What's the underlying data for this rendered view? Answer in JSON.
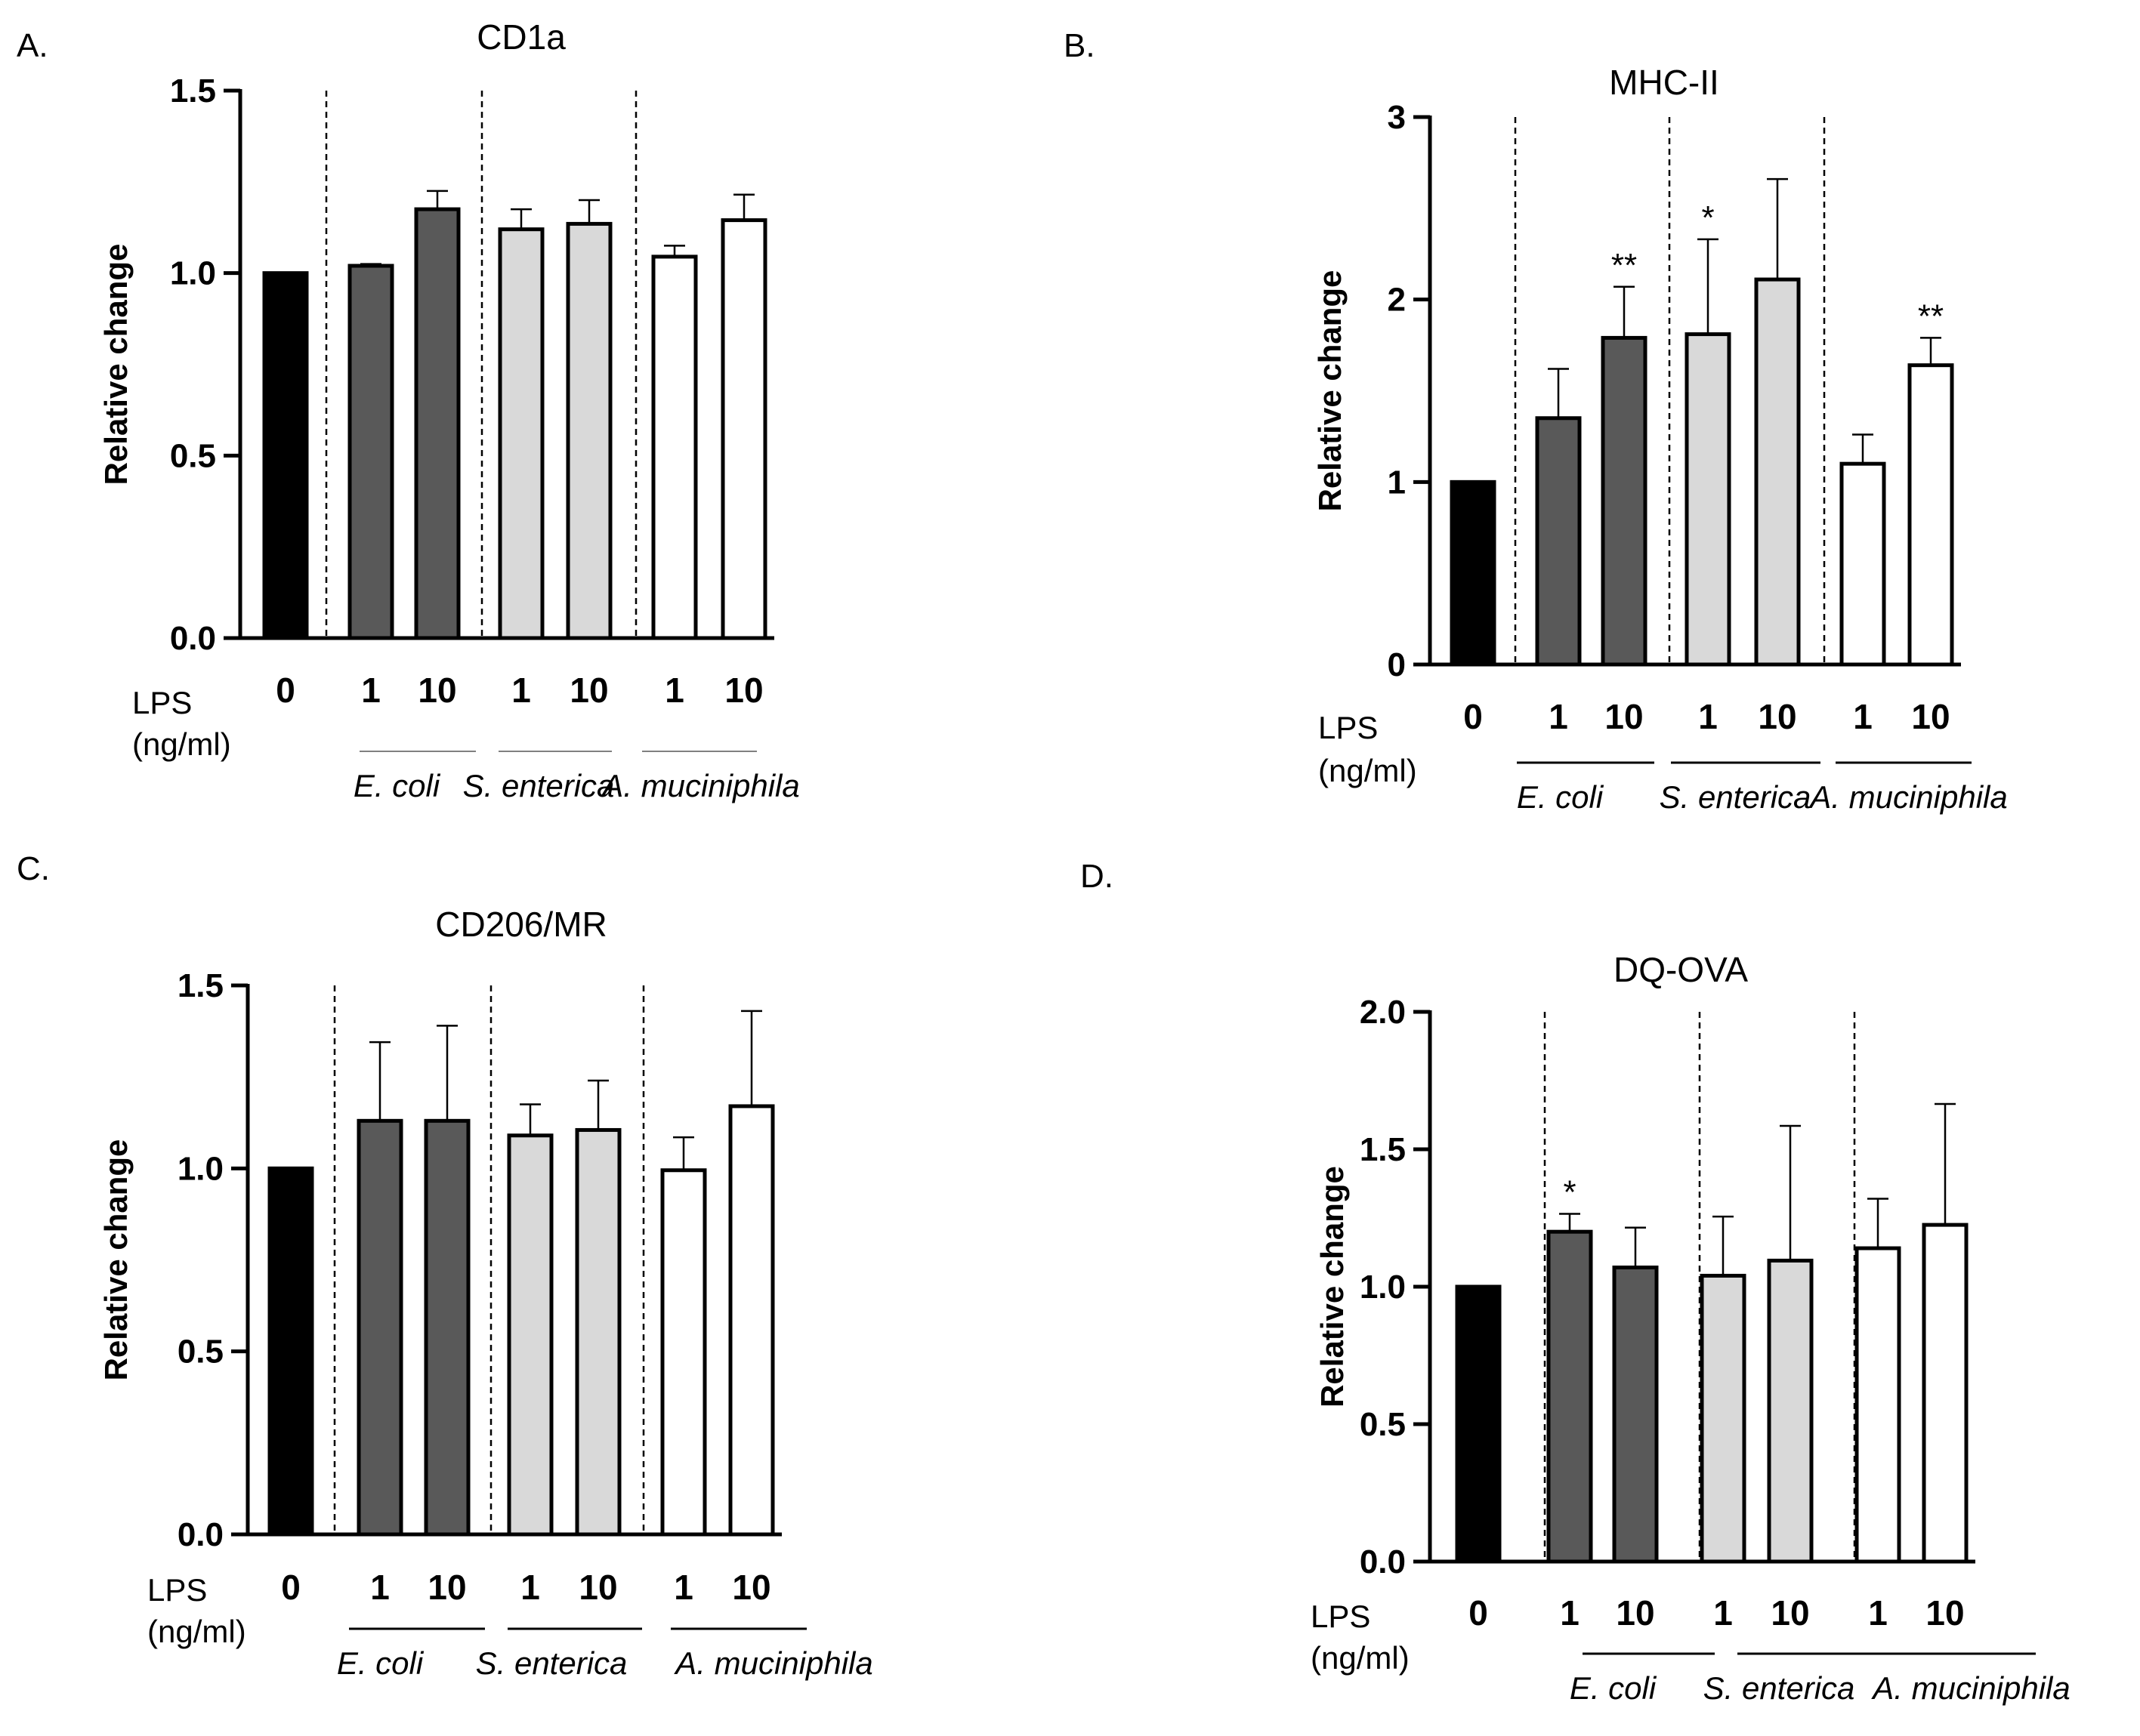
{
  "chart_data": [
    {
      "type": "bar",
      "panel_label": "A.",
      "title": "CD1a",
      "ylabel": "Relative change",
      "ylim": [
        0,
        1.5
      ],
      "yticks": [
        "0.0",
        "0.5",
        "1.0",
        "1.5"
      ],
      "xlabel_prefix": [
        "LPS",
        "(ng/ml)"
      ],
      "categories": [
        "0",
        "1",
        "10",
        "1",
        "10",
        "1",
        "10"
      ],
      "groups": [
        "E. coli",
        "S. enterica",
        "A. muciniphila"
      ],
      "values": [
        1.0,
        1.02,
        1.175,
        1.12,
        1.135,
        1.045,
        1.145
      ],
      "errors": [
        0,
        0.005,
        0.05,
        0.055,
        0.065,
        0.03,
        0.07
      ],
      "annotations": [
        "",
        "",
        "",
        "",
        "",
        "",
        ""
      ],
      "fills": [
        "#000000",
        "#595959",
        "#595959",
        "#d9d9d9",
        "#d9d9d9",
        "#ffffff",
        "#ffffff"
      ]
    },
    {
      "type": "bar",
      "panel_label": "B.",
      "title": "MHC-II",
      "ylabel": "Relative change",
      "ylim": [
        0,
        3
      ],
      "yticks": [
        "0",
        "1",
        "2",
        "3"
      ],
      "xlabel_prefix": [
        "LPS",
        "(ng/ml)"
      ],
      "categories": [
        "0",
        "1",
        "10",
        "1",
        "10",
        "1",
        "10"
      ],
      "groups": [
        "E. coli",
        "S. enterica",
        "A. muciniphila"
      ],
      "values": [
        1.0,
        1.35,
        1.79,
        1.81,
        2.11,
        1.1,
        1.64
      ],
      "errors": [
        0,
        0.27,
        0.28,
        0.52,
        0.55,
        0.16,
        0.15
      ],
      "annotations": [
        "",
        "",
        "**",
        "*",
        "",
        "",
        "**"
      ],
      "fills": [
        "#000000",
        "#595959",
        "#595959",
        "#d9d9d9",
        "#d9d9d9",
        "#ffffff",
        "#ffffff"
      ]
    },
    {
      "type": "bar",
      "panel_label": "C.",
      "title": "CD206/MR",
      "ylabel": "Relative change",
      "ylim": [
        0,
        1.5
      ],
      "yticks": [
        "0.0",
        "0.5",
        "1.0",
        "1.5"
      ],
      "xlabel_prefix": [
        "LPS",
        "(ng/ml)"
      ],
      "categories": [
        "0",
        "1",
        "10",
        "1",
        "10",
        "1",
        "10"
      ],
      "groups": [
        "E. coli",
        "S. enterica",
        "A. muciniphila"
      ],
      "values": [
        1.0,
        1.13,
        1.13,
        1.09,
        1.105,
        0.995,
        1.17
      ],
      "errors": [
        0,
        0.215,
        0.26,
        0.085,
        0.135,
        0.09,
        0.26
      ],
      "annotations": [
        "",
        "",
        "",
        "",
        "",
        "",
        ""
      ],
      "fills": [
        "#000000",
        "#595959",
        "#595959",
        "#d9d9d9",
        "#d9d9d9",
        "#ffffff",
        "#ffffff"
      ]
    },
    {
      "type": "bar",
      "panel_label": "D.",
      "title": "DQ-OVA",
      "ylabel": "Relative change",
      "ylim": [
        0,
        2.0
      ],
      "yticks": [
        "0.0",
        "0.5",
        "1.0",
        "1.5",
        "2.0"
      ],
      "xlabel_prefix": [
        "LPS",
        "(ng/ml)"
      ],
      "categories": [
        "0",
        "1",
        "10",
        "1",
        "10",
        "1",
        "10"
      ],
      "groups": [
        "E. coli",
        "S. enterica",
        "A. muciniphila"
      ],
      "values": [
        1.0,
        1.2,
        1.07,
        1.04,
        1.095,
        1.14,
        1.225
      ],
      "errors": [
        0,
        0.065,
        0.145,
        0.215,
        0.49,
        0.18,
        0.44
      ],
      "annotations": [
        "",
        "*",
        "",
        "",
        "",
        "",
        ""
      ],
      "fills": [
        "#000000",
        "#595959",
        "#595959",
        "#d9d9d9",
        "#d9d9d9",
        "#ffffff",
        "#ffffff"
      ]
    }
  ]
}
